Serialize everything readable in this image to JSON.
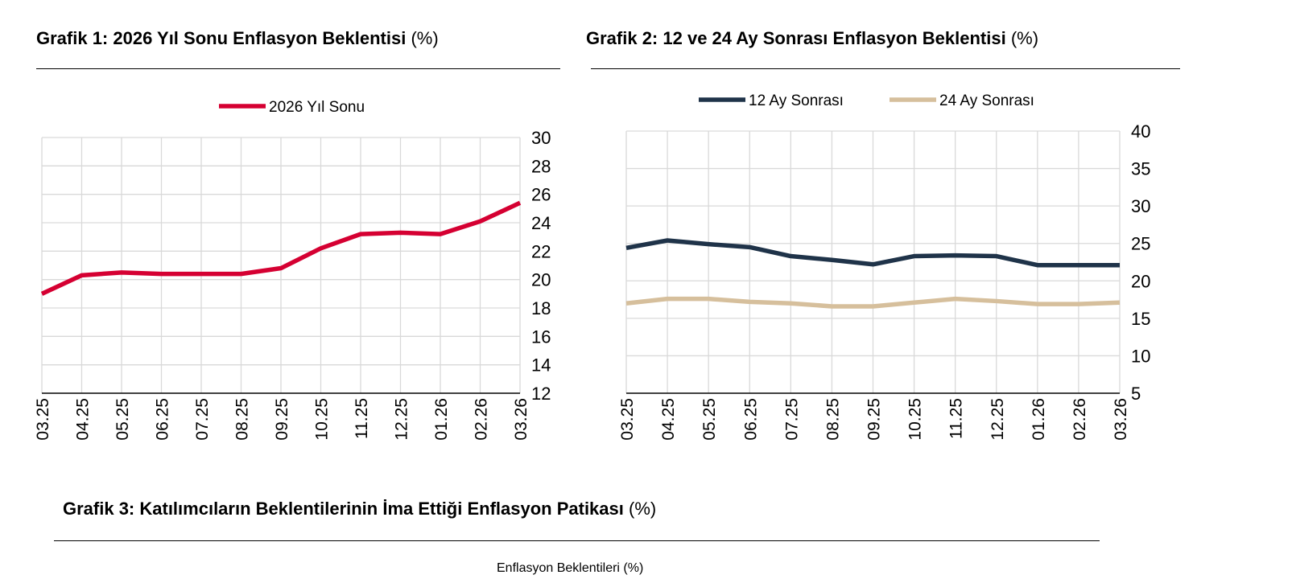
{
  "chart_data": [
    {
      "type": "line",
      "title": "Grafik 1: 2026 Yıl Sonu Enflasyon Beklentisi",
      "unit": "(%)",
      "categories": [
        "03.25",
        "04.25",
        "05.25",
        "06.25",
        "07.25",
        "08.25",
        "09.25",
        "10.25",
        "11.25",
        "12.25",
        "01.26",
        "02.26",
        "03.26"
      ],
      "series": [
        {
          "name": "2026 Yıl Sonu",
          "color": "#D50032",
          "values": [
            19.0,
            20.3,
            20.5,
            20.4,
            20.4,
            20.4,
            20.8,
            22.2,
            23.2,
            23.3,
            23.2,
            24.1,
            25.4
          ]
        }
      ],
      "ylim": [
        12,
        30
      ],
      "yticks": [
        12,
        14,
        16,
        18,
        20,
        22,
        24,
        26,
        28,
        30
      ],
      "grid": true,
      "legend": "top-center",
      "y_axis_side": "right"
    },
    {
      "type": "line",
      "title": "Grafik 2: 12 ve 24 Ay Sonrası Enflasyon Beklentisi",
      "unit": "(%)",
      "categories": [
        "03.25",
        "04.25",
        "05.25",
        "06.25",
        "07.25",
        "08.25",
        "09.25",
        "10.25",
        "11.25",
        "12.25",
        "01.26",
        "02.26",
        "03.26"
      ],
      "series": [
        {
          "name": "12 Ay Sonrası",
          "color": "#1F3349",
          "values": [
            24.4,
            25.4,
            24.9,
            24.5,
            23.3,
            22.8,
            22.2,
            23.3,
            23.4,
            23.3,
            22.1,
            22.1,
            22.1
          ]
        },
        {
          "name": "24 Ay Sonrası",
          "color": "#D6BF9C",
          "values": [
            17.0,
            17.6,
            17.6,
            17.2,
            17.0,
            16.6,
            16.6,
            17.1,
            17.6,
            17.3,
            16.9,
            16.9,
            17.1
          ]
        }
      ],
      "ylim": [
        5,
        40
      ],
      "yticks": [
        5,
        10,
        15,
        20,
        25,
        30,
        35,
        40
      ],
      "grid": true,
      "legend": "top-center",
      "y_axis_side": "right"
    }
  ],
  "chart3": {
    "title": "Grafik 3: Katılımcıların Beklentilerinin İma Ettiği Enflasyon Patikası",
    "unit": "(%)",
    "subtitle": "Enflasyon Beklentileri (%)"
  }
}
